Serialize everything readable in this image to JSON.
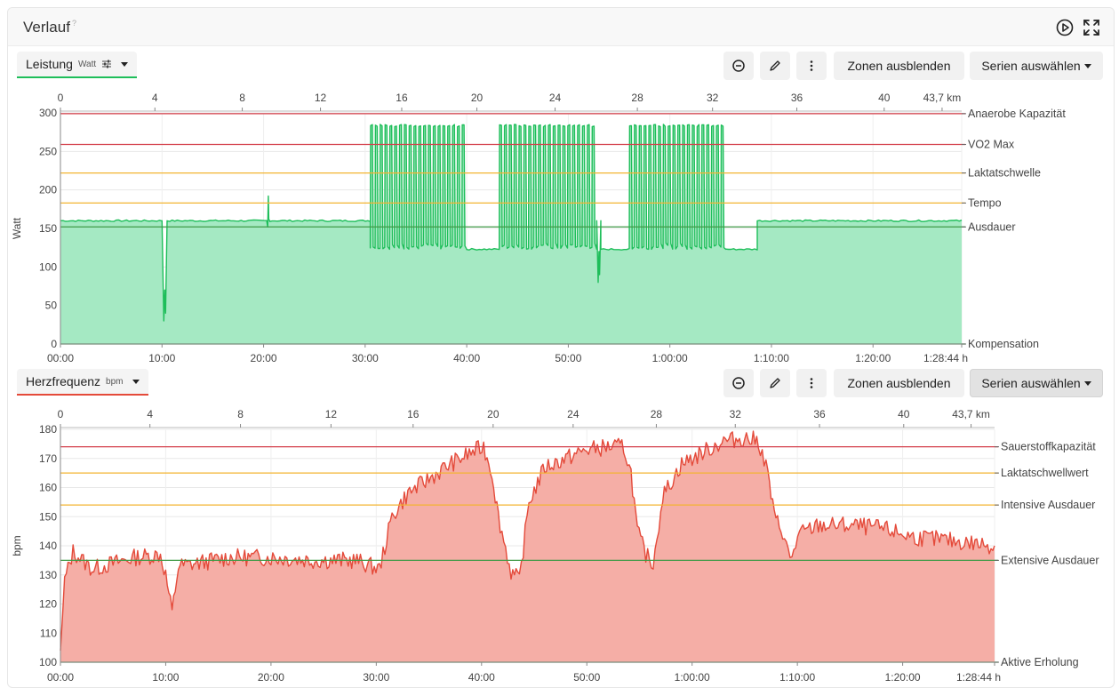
{
  "card": {
    "title": "Verlauf",
    "title_sup": "?"
  },
  "header_icons": [
    "play-circle-icon",
    "fullscreen-icon"
  ],
  "toolbar_labels": {
    "zones": "Zonen ausblenden",
    "series": "Serien auswählen"
  },
  "chart_data": [
    {
      "type": "area",
      "selector": {
        "label": "Leistung",
        "unit": "Watt"
      },
      "color": "#1ebe5a",
      "fill": "#a5e9c3",
      "ylabel": "Watt",
      "ylim": [
        0,
        300
      ],
      "yticks": [
        0,
        50,
        100,
        150,
        200,
        250,
        300
      ],
      "x_time_ticks": [
        "00:00",
        "10:00",
        "20:00",
        "30:00",
        "40:00",
        "50:00",
        "1:00:00",
        "1:10:00",
        "1:20:00",
        "1:28:44 h"
      ],
      "x_time_minutes": [
        0,
        10,
        20,
        30,
        40,
        50,
        60,
        70,
        80,
        88.73
      ],
      "x_time_range_minutes": [
        0,
        88.73
      ],
      "x_distance_ticks": [
        "0",
        "4",
        "8",
        "12",
        "16",
        "20",
        "24",
        "28",
        "32",
        "36",
        "40",
        "43,7 km"
      ],
      "x_distance_km": [
        0,
        4,
        8,
        12,
        16,
        20,
        24,
        28,
        32,
        36,
        40,
        43.7
      ],
      "x_distance_minutes": [
        0,
        9.3,
        17.9,
        25.6,
        33.6,
        41.0,
        48.7,
        56.8,
        64.2,
        72.5,
        81.1,
        86.8
      ],
      "zones": [
        {
          "label": "Anaerobe Kapazität",
          "value": 299,
          "color": "#d43f4a"
        },
        {
          "label": "VO2 Max",
          "value": 259,
          "color": "#d43f4a"
        },
        {
          "label": "Laktatschwelle",
          "value": 222,
          "color": "#f3b431"
        },
        {
          "label": "Tempo",
          "value": 183,
          "color": "#f3b431"
        },
        {
          "label": "Ausdauer",
          "value": 152,
          "color": "#3f9a46"
        },
        {
          "label": "Kompensation",
          "value": 0,
          "color": "#3f9a46"
        }
      ],
      "segments": [
        {
          "t": [
            0,
            10.0
          ],
          "mode": "flat",
          "level": 160
        },
        {
          "t": [
            10.0,
            10.5
          ],
          "mode": "dip",
          "level": 30
        },
        {
          "t": [
            10.5,
            20.3
          ],
          "mode": "flat",
          "level": 160
        },
        {
          "t": [
            20.3,
            20.6
          ],
          "mode": "dip",
          "level": 152
        },
        {
          "t": [
            20.6,
            30.5
          ],
          "mode": "flat",
          "level": 160
        },
        {
          "t": [
            30.5,
            40.0
          ],
          "mode": "intervals",
          "hi": 285,
          "lo": 123,
          "n": 20
        },
        {
          "t": [
            40.0,
            43.2
          ],
          "mode": "flat",
          "level": 123
        },
        {
          "t": [
            43.2,
            52.8
          ],
          "mode": "intervals",
          "hi": 285,
          "lo": 123,
          "n": 20
        },
        {
          "t": [
            52.8,
            53.2
          ],
          "mode": "dip",
          "level": 80
        },
        {
          "t": [
            53.2,
            56.0
          ],
          "mode": "flat",
          "level": 123
        },
        {
          "t": [
            56.0,
            65.5
          ],
          "mode": "intervals",
          "hi": 285,
          "lo": 123,
          "n": 20
        },
        {
          "t": [
            65.5,
            68.6
          ],
          "mode": "flat",
          "level": 123
        },
        {
          "t": [
            68.6,
            88.73
          ],
          "mode": "flat",
          "level": 160
        }
      ]
    },
    {
      "type": "area",
      "selector": {
        "label": "Herzfrequenz",
        "unit": "bpm"
      },
      "color": "#e44a3a",
      "fill": "#f5aea6",
      "ylabel": "bpm",
      "ylim": [
        100,
        180
      ],
      "yticks": [
        100,
        110,
        120,
        130,
        140,
        150,
        160,
        170,
        180
      ],
      "x_time_ticks": [
        "00:00",
        "10:00",
        "20:00",
        "30:00",
        "40:00",
        "50:00",
        "1:00:00",
        "1:10:00",
        "1:20:00",
        "1:28:44 h"
      ],
      "x_time_minutes": [
        0,
        10,
        20,
        30,
        40,
        50,
        60,
        70,
        80,
        88.73
      ],
      "x_time_range_minutes": [
        0,
        88.73
      ],
      "x_distance_ticks": [
        "0",
        "4",
        "8",
        "12",
        "16",
        "20",
        "24",
        "28",
        "32",
        "36",
        "40",
        "43,7 km"
      ],
      "x_distance_km": [
        0,
        4,
        8,
        12,
        16,
        20,
        24,
        28,
        32,
        36,
        40,
        43.7
      ],
      "x_distance_minutes": [
        0,
        8.5,
        17.1,
        25.7,
        33.5,
        41.1,
        48.7,
        56.6,
        64.1,
        72.1,
        80.1,
        86.5
      ],
      "zones": [
        {
          "label": "Sauerstoffkapazität",
          "value": 174,
          "color": "#d43f4a"
        },
        {
          "label": "Laktatschwellwert",
          "value": 165,
          "color": "#f3b431"
        },
        {
          "label": "Intensive Ausdauer",
          "value": 154,
          "color": "#f3b431"
        },
        {
          "label": "Extensive Ausdauer",
          "value": 135,
          "color": "#3f9a46"
        },
        {
          "label": "Aktive Erholung",
          "value": 100,
          "color": "#3f9a46"
        }
      ],
      "hr_points": [
        [
          0,
          104
        ],
        [
          0.4,
          128
        ],
        [
          1.2,
          138
        ],
        [
          3.0,
          132
        ],
        [
          5.0,
          134
        ],
        [
          7.0,
          136
        ],
        [
          9.5,
          137
        ],
        [
          10.0,
          130
        ],
        [
          10.6,
          117
        ],
        [
          11.2,
          133
        ],
        [
          13,
          134
        ],
        [
          16,
          136
        ],
        [
          20,
          136
        ],
        [
          24,
          135
        ],
        [
          28,
          135
        ],
        [
          30.3,
          132
        ],
        [
          31.5,
          150
        ],
        [
          33,
          158
        ],
        [
          35,
          163
        ],
        [
          37,
          168
        ],
        [
          39,
          172
        ],
        [
          40.2,
          174
        ],
        [
          41.0,
          165
        ],
        [
          41.6,
          150
        ],
        [
          42.8,
          131
        ],
        [
          43.6,
          128
        ],
        [
          44.5,
          155
        ],
        [
          46,
          167
        ],
        [
          48,
          170
        ],
        [
          50,
          173
        ],
        [
          52,
          174
        ],
        [
          53.5,
          174
        ],
        [
          54.2,
          165
        ],
        [
          54.8,
          145
        ],
        [
          55.6,
          137
        ],
        [
          56.3,
          134
        ],
        [
          57.2,
          157
        ],
        [
          59,
          168
        ],
        [
          61,
          172
        ],
        [
          63,
          176
        ],
        [
          65,
          177
        ],
        [
          66.3,
          176
        ],
        [
          67.2,
          165
        ],
        [
          67.8,
          150
        ],
        [
          68.6,
          145
        ],
        [
          69.3,
          135
        ],
        [
          70.2,
          144
        ],
        [
          72,
          147
        ],
        [
          75,
          147
        ],
        [
          78,
          146
        ],
        [
          81,
          143
        ],
        [
          84,
          142
        ],
        [
          88.73,
          140
        ]
      ]
    }
  ]
}
